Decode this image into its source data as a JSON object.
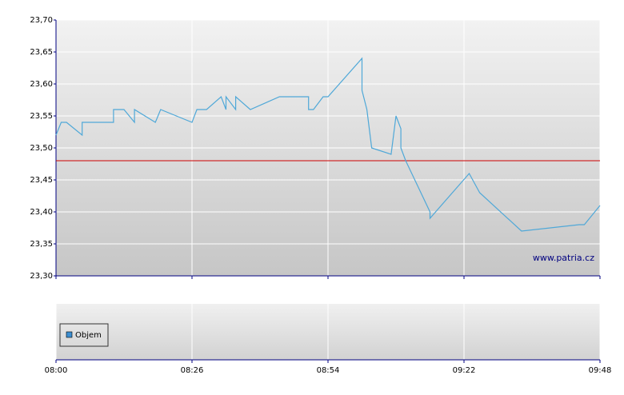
{
  "chart_data": [
    {
      "type": "line",
      "x": [
        "08:00",
        "08:01",
        "08:02",
        "08:05",
        "08:05",
        "08:11",
        "08:11",
        "08:13",
        "08:15",
        "08:15",
        "08:19",
        "08:20",
        "08:26",
        "08:27",
        "08:29",
        "08:32",
        "08:33",
        "08:33",
        "08:35",
        "08:35",
        "08:38",
        "08:44",
        "08:50",
        "08:50",
        "08:51",
        "08:53",
        "08:54",
        "09:01",
        "09:01",
        "09:02",
        "09:03",
        "09:07",
        "09:08",
        "09:09",
        "09:09",
        "09:10",
        "09:15",
        "09:15",
        "09:23",
        "09:25",
        "09:33",
        "09:44",
        "09:45",
        "09:48"
      ],
      "values": [
        23.52,
        23.54,
        23.54,
        23.52,
        23.54,
        23.54,
        23.56,
        23.56,
        23.54,
        23.56,
        23.54,
        23.56,
        23.54,
        23.56,
        23.56,
        23.58,
        23.56,
        23.58,
        23.56,
        23.58,
        23.56,
        23.58,
        23.58,
        23.56,
        23.56,
        23.58,
        23.58,
        23.64,
        23.59,
        23.56,
        23.5,
        23.49,
        23.55,
        23.53,
        23.5,
        23.48,
        23.4,
        23.39,
        23.46,
        23.43,
        23.37,
        23.38,
        23.38,
        23.41
      ],
      "color": "#4fa8d8",
      "ylim": [
        23.3,
        23.7
      ],
      "yticks": [
        {
          "value": 23.3,
          "label": "23,30"
        },
        {
          "value": 23.35,
          "label": "23,35"
        },
        {
          "value": 23.4,
          "label": "23,40"
        },
        {
          "value": 23.45,
          "label": "23,45"
        },
        {
          "value": 23.5,
          "label": "23,50"
        },
        {
          "value": 23.55,
          "label": "23,55"
        },
        {
          "value": 23.6,
          "label": "23,60"
        },
        {
          "value": 23.65,
          "label": "23,65"
        },
        {
          "value": 23.7,
          "label": "23,70"
        }
      ],
      "xticks": [
        "08:00",
        "08:26",
        "08:54",
        "09:22",
        "09:48"
      ],
      "reference_line": {
        "value": 23.48,
        "color": "#cc0000"
      },
      "watermark": "www.patria.cz",
      "grid": true
    },
    {
      "type": "bar",
      "series": [
        {
          "name": "Objem",
          "color": "#3d8fd1",
          "values": []
        }
      ]
    }
  ]
}
